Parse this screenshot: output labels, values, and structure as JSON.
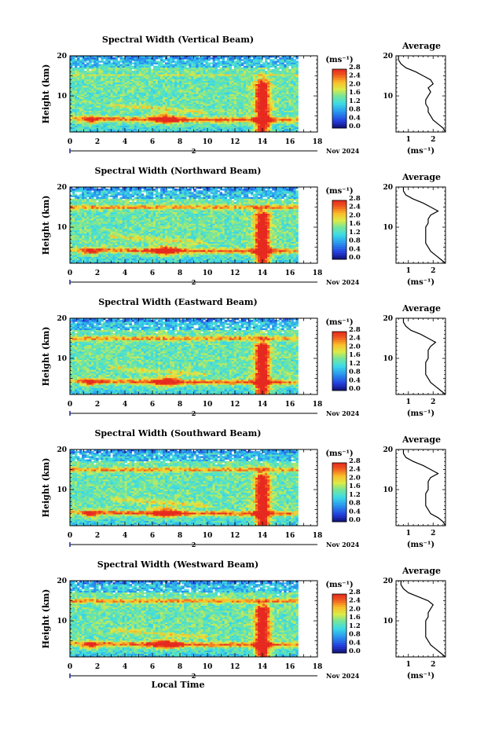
{
  "chart_data": [
    {
      "type": "heatmap",
      "title": "Spectral Width (Vertical Beam)",
      "ylabel": "Height (km)",
      "xlabel": "",
      "xticks": [
        0,
        2,
        4,
        6,
        8,
        10,
        12,
        14,
        16,
        18
      ],
      "yticks": [
        10,
        20
      ],
      "xlim": [
        0,
        18
      ],
      "ylim": [
        1,
        20
      ],
      "date_label": "2 Nov 2024",
      "colorbar": {
        "unit": "(ms⁻¹)",
        "ticks": [
          "2.8",
          "2.4",
          "2.0",
          "1.6",
          "1.2",
          "0.8",
          "0.4",
          "0.0"
        ],
        "range": [
          0,
          2.8
        ]
      },
      "average": {
        "title": "Average",
        "xlabel": "(ms⁻¹)",
        "xticks": [
          1,
          2
        ],
        "xlim": [
          0.5,
          2.5
        ],
        "yticks": [
          10,
          20
        ],
        "profile": [
          [
            2.5,
            1
          ],
          [
            2.4,
            2
          ],
          [
            2.2,
            3
          ],
          [
            2.0,
            4
          ],
          [
            1.9,
            5
          ],
          [
            1.8,
            6
          ],
          [
            1.8,
            7
          ],
          [
            1.7,
            8
          ],
          [
            1.7,
            9
          ],
          [
            1.8,
            10
          ],
          [
            1.9,
            11
          ],
          [
            1.8,
            12
          ],
          [
            2.0,
            13
          ],
          [
            1.9,
            14
          ],
          [
            1.6,
            15
          ],
          [
            1.3,
            16
          ],
          [
            0.9,
            17
          ],
          [
            0.7,
            18
          ],
          [
            0.6,
            19
          ],
          [
            0.6,
            20
          ]
        ]
      }
    },
    {
      "type": "heatmap",
      "title": "Spectral Width (Northward Beam)",
      "ylabel": "Height (km)",
      "xlabel": "",
      "xticks": [
        0,
        2,
        4,
        6,
        8,
        10,
        12,
        14,
        16,
        18
      ],
      "yticks": [
        10,
        20
      ],
      "xlim": [
        0,
        18
      ],
      "ylim": [
        1,
        20
      ],
      "date_label": "2 Nov 2024",
      "colorbar": {
        "unit": "(ms⁻¹)",
        "ticks": [
          "2.8",
          "2.4",
          "2.0",
          "1.6",
          "1.2",
          "0.8",
          "0.4",
          "0.0"
        ],
        "range": [
          0,
          2.8
        ]
      },
      "average": {
        "title": "Average",
        "xlabel": "(ms⁻¹)",
        "xticks": [
          1,
          2
        ],
        "xlim": [
          0.5,
          2.5
        ],
        "yticks": [
          10,
          20
        ],
        "profile": [
          [
            2.5,
            1
          ],
          [
            2.3,
            2
          ],
          [
            2.1,
            3
          ],
          [
            1.9,
            4
          ],
          [
            1.8,
            5
          ],
          [
            1.7,
            6
          ],
          [
            1.7,
            7
          ],
          [
            1.7,
            8
          ],
          [
            1.7,
            9
          ],
          [
            1.7,
            10
          ],
          [
            1.8,
            11
          ],
          [
            1.8,
            12
          ],
          [
            1.9,
            13
          ],
          [
            2.2,
            14
          ],
          [
            1.9,
            15
          ],
          [
            1.6,
            16
          ],
          [
            1.2,
            17
          ],
          [
            0.9,
            18
          ],
          [
            0.8,
            19
          ],
          [
            0.8,
            20
          ]
        ]
      }
    },
    {
      "type": "heatmap",
      "title": "Spectral Width (Eastward Beam)",
      "ylabel": "Height (km)",
      "xlabel": "",
      "xticks": [
        0,
        2,
        4,
        6,
        8,
        10,
        12,
        14,
        16,
        18
      ],
      "yticks": [
        10,
        20
      ],
      "xlim": [
        0,
        18
      ],
      "ylim": [
        1,
        20
      ],
      "date_label": "2 Nov 2024",
      "colorbar": {
        "unit": "(ms⁻¹)",
        "ticks": [
          "2.8",
          "2.4",
          "2.0",
          "1.6",
          "1.2",
          "0.8",
          "0.4",
          "0.0"
        ],
        "range": [
          0,
          2.8
        ]
      },
      "average": {
        "title": "Average",
        "xlabel": "(ms⁻¹)",
        "xticks": [
          1,
          2
        ],
        "xlim": [
          0.5,
          2.5
        ],
        "yticks": [
          10,
          20
        ],
        "profile": [
          [
            2.5,
            1
          ],
          [
            2.3,
            2
          ],
          [
            2.1,
            3
          ],
          [
            1.9,
            4
          ],
          [
            1.8,
            5
          ],
          [
            1.7,
            6
          ],
          [
            1.7,
            7
          ],
          [
            1.7,
            8
          ],
          [
            1.7,
            9
          ],
          [
            1.8,
            10
          ],
          [
            1.8,
            11
          ],
          [
            1.8,
            12
          ],
          [
            1.9,
            13
          ],
          [
            2.1,
            14
          ],
          [
            1.8,
            15
          ],
          [
            1.5,
            16
          ],
          [
            1.1,
            17
          ],
          [
            0.9,
            18
          ],
          [
            0.8,
            19
          ],
          [
            0.8,
            20
          ]
        ]
      }
    },
    {
      "type": "heatmap",
      "title": "Spectral Width (Southward Beam)",
      "ylabel": "Height (km)",
      "xlabel": "",
      "xticks": [
        0,
        2,
        4,
        6,
        8,
        10,
        12,
        14,
        16,
        18
      ],
      "yticks": [
        10,
        20
      ],
      "xlim": [
        0,
        18
      ],
      "ylim": [
        1,
        20
      ],
      "date_label": "2 Nov 2024",
      "colorbar": {
        "unit": "(ms⁻¹)",
        "ticks": [
          "2.8",
          "2.4",
          "2.0",
          "1.6",
          "1.2",
          "0.8",
          "0.4",
          "0.0"
        ],
        "range": [
          0,
          2.8
        ]
      },
      "average": {
        "title": "Average",
        "xlabel": "(ms⁻¹)",
        "xticks": [
          1,
          2
        ],
        "xlim": [
          0.5,
          2.5
        ],
        "yticks": [
          10,
          20
        ],
        "profile": [
          [
            2.5,
            1
          ],
          [
            2.4,
            2
          ],
          [
            2.2,
            3
          ],
          [
            1.9,
            4
          ],
          [
            1.8,
            5
          ],
          [
            1.7,
            6
          ],
          [
            1.7,
            7
          ],
          [
            1.7,
            8
          ],
          [
            1.7,
            9
          ],
          [
            1.8,
            10
          ],
          [
            1.8,
            11
          ],
          [
            1.8,
            12
          ],
          [
            1.9,
            13
          ],
          [
            2.2,
            14
          ],
          [
            1.9,
            15
          ],
          [
            1.6,
            16
          ],
          [
            1.2,
            17
          ],
          [
            0.9,
            18
          ],
          [
            0.8,
            19
          ],
          [
            0.8,
            20
          ]
        ]
      }
    },
    {
      "type": "heatmap",
      "title": "Spectral Width (Westward Beam)",
      "ylabel": "Height (km)",
      "xlabel": "Local Time",
      "xticks": [
        0,
        2,
        4,
        6,
        8,
        10,
        12,
        14,
        16,
        18
      ],
      "yticks": [
        10,
        20
      ],
      "xlim": [
        0,
        18
      ],
      "ylim": [
        1,
        20
      ],
      "date_label": "2 Nov 2024",
      "colorbar": {
        "unit": "(ms⁻¹)",
        "ticks": [
          "2.8",
          "2.4",
          "2.0",
          "1.6",
          "1.2",
          "0.8",
          "0.4",
          "0.0"
        ],
        "range": [
          0,
          2.8
        ]
      },
      "average": {
        "title": "Average",
        "xlabel": "(ms⁻¹)",
        "xticks": [
          1,
          2
        ],
        "xlim": [
          0.5,
          2.5
        ],
        "yticks": [
          10,
          20
        ],
        "profile": [
          [
            2.5,
            1
          ],
          [
            2.3,
            2
          ],
          [
            2.1,
            3
          ],
          [
            1.9,
            4
          ],
          [
            1.8,
            5
          ],
          [
            1.7,
            6
          ],
          [
            1.7,
            7
          ],
          [
            1.7,
            8
          ],
          [
            1.7,
            9
          ],
          [
            1.7,
            10
          ],
          [
            1.8,
            11
          ],
          [
            1.8,
            12
          ],
          [
            1.9,
            13
          ],
          [
            2.0,
            14
          ],
          [
            1.8,
            15
          ],
          [
            1.4,
            16
          ],
          [
            1.0,
            17
          ],
          [
            0.8,
            18
          ],
          [
            0.7,
            19
          ],
          [
            0.7,
            20
          ]
        ]
      }
    }
  ]
}
